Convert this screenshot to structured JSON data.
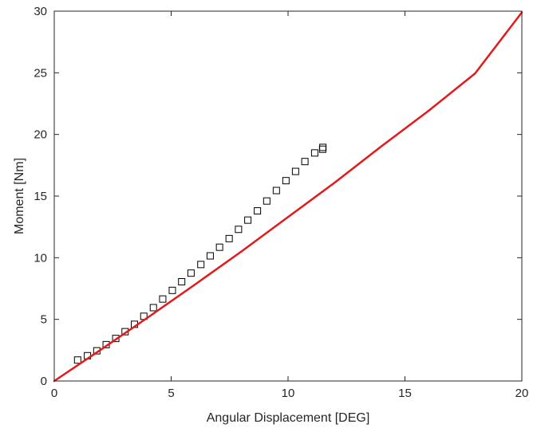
{
  "chart_data": {
    "type": "scatter",
    "title": "",
    "xlabel": "Angular Displacement [DEG]",
    "ylabel": "Moment [Nm]",
    "xlim": [
      0,
      20
    ],
    "ylim": [
      0,
      30
    ],
    "xticks": [
      0,
      5,
      10,
      15,
      20
    ],
    "yticks": [
      0,
      5,
      10,
      15,
      20,
      25,
      30
    ],
    "xtick_labels": [
      "0",
      "5",
      "10",
      "15",
      "20"
    ],
    "ytick_labels": [
      "0",
      "5",
      "10",
      "15",
      "20",
      "25",
      "30"
    ],
    "grid": false,
    "legend": "none",
    "series": [
      {
        "kind": "markers",
        "marker": "square",
        "color": "#000000",
        "x": [
          1.0,
          1.42,
          1.82,
          2.22,
          2.63,
          3.03,
          3.43,
          3.83,
          4.24,
          4.64,
          5.05,
          5.45,
          5.85,
          6.27,
          6.67,
          7.07,
          7.48,
          7.88,
          8.28,
          8.69,
          9.09,
          9.5,
          9.91,
          10.32,
          10.72,
          11.14,
          11.48,
          11.49
        ],
        "y": [
          1.7,
          2.05,
          2.45,
          2.95,
          3.45,
          4.0,
          4.6,
          5.25,
          5.95,
          6.65,
          7.35,
          8.05,
          8.75,
          9.45,
          10.15,
          10.85,
          11.55,
          12.3,
          13.05,
          13.8,
          14.6,
          15.45,
          16.25,
          17.0,
          17.8,
          18.5,
          18.8,
          18.95
        ]
      },
      {
        "kind": "line",
        "color": "#e31a1c",
        "x": [
          0,
          2,
          4,
          6,
          8,
          10,
          12,
          14,
          16,
          18,
          20
        ],
        "y": [
          0,
          2.55,
          5.15,
          7.8,
          10.5,
          13.3,
          16.1,
          19.05,
          21.9,
          24.95,
          29.9
        ]
      }
    ]
  }
}
